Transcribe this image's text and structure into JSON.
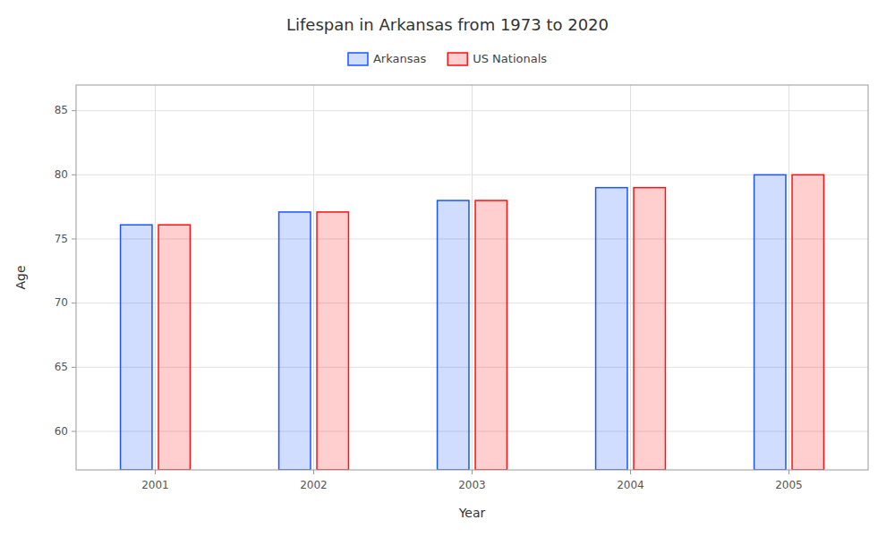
{
  "chart_data": {
    "type": "bar",
    "title": "Lifespan in Arkansas from 1973 to 2020",
    "x_label": "Year",
    "y_label": "Age",
    "categories": [
      "2001",
      "2002",
      "2003",
      "2004",
      "2005"
    ],
    "series": [
      {
        "name": "Arkansas",
        "color": "#1a55ff",
        "values": [
          76.1,
          77.1,
          78.0,
          79.0,
          80.0
        ]
      },
      {
        "name": "US Nationals",
        "color": "#ff1111",
        "values": [
          76.1,
          77.1,
          78.0,
          79.0,
          80.0
        ]
      }
    ],
    "ylim": [
      57,
      87
    ],
    "yticks": [
      60,
      65,
      70,
      75,
      80,
      85
    ],
    "grid": true,
    "legend": "top"
  }
}
